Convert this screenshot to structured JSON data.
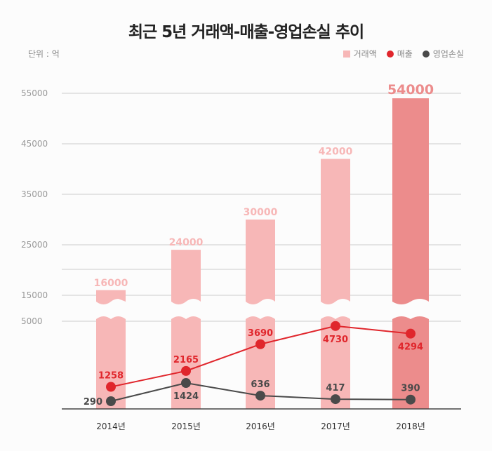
{
  "chart_data": {
    "type": "bar+line",
    "title": "최근 5년 거래액-매출-영업손실 추이",
    "unit_label": "단위 : 억",
    "categories": [
      "2014년",
      "2015년",
      "2016년",
      "2017년",
      "2018년"
    ],
    "y_ticks": [
      "55000",
      "45000",
      "35000",
      "25000",
      "15000",
      "5000"
    ],
    "axis_break": "between 5000 and 15000",
    "grid": true,
    "legend_position": "top-right",
    "series": [
      {
        "name": "거래액",
        "kind": "bar",
        "color": "#f7b7b7",
        "highlight_color": "#ec8c8c",
        "values": [
          16000,
          24000,
          30000,
          42000,
          54000
        ],
        "labels": [
          "16000",
          "24000",
          "30000",
          "42000",
          "54000"
        ]
      },
      {
        "name": "매출",
        "kind": "line",
        "color": "#e0262c",
        "values": [
          1258,
          2165,
          3690,
          4730,
          4294
        ],
        "labels": [
          "1258",
          "2165",
          "3690",
          "4730",
          "4294"
        ]
      },
      {
        "name": "영업손실",
        "kind": "line",
        "color": "#4a4a4a",
        "values": [
          290,
          1424,
          636,
          417,
          390
        ],
        "labels": [
          "290",
          "1424",
          "636",
          "417",
          "390"
        ]
      }
    ]
  }
}
